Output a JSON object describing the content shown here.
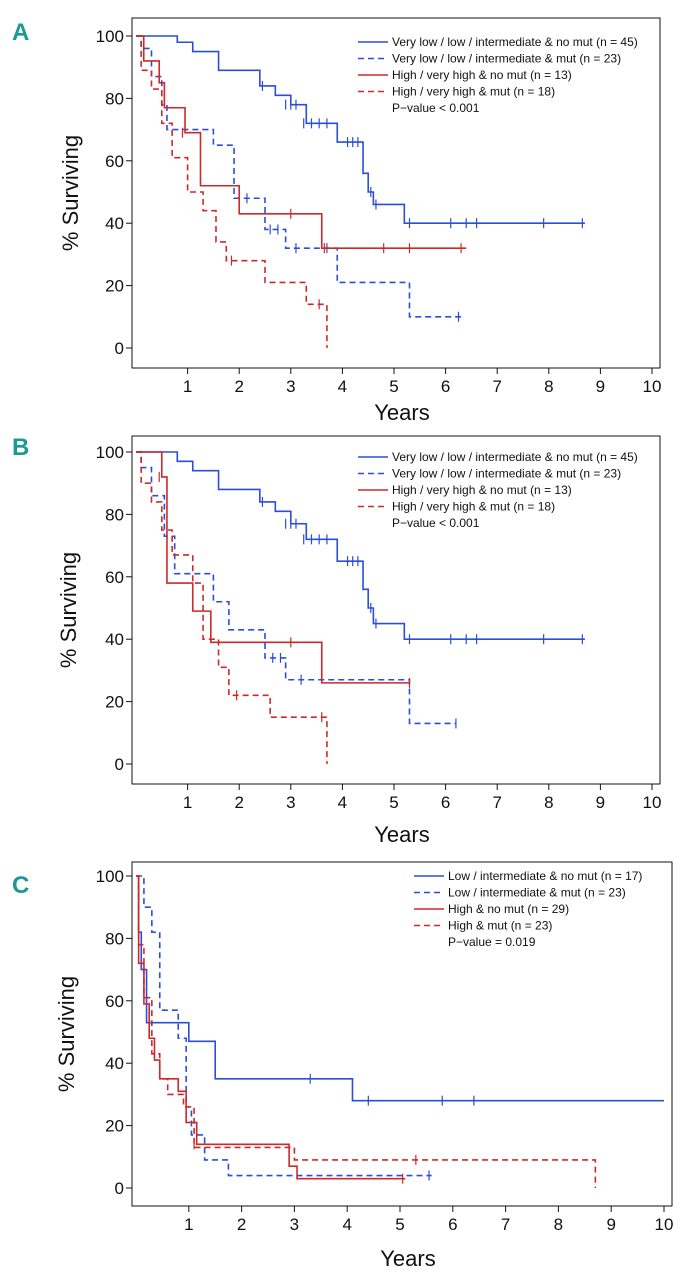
{
  "figure": {
    "colors": {
      "blue": "#2a4ed9",
      "red": "#cc2a2a",
      "panel_letter": "#1a9a97",
      "axis": "#111111"
    }
  },
  "chart_data": [
    {
      "type": "line",
      "panel": "A",
      "xlabel": "Years",
      "ylabel": "% Surviving",
      "xlim": [
        0,
        10
      ],
      "ylim": [
        0,
        100
      ],
      "xticks": [
        1,
        2,
        3,
        4,
        5,
        6,
        7,
        8,
        9,
        10
      ],
      "yticks": [
        0,
        20,
        40,
        60,
        80,
        100
      ],
      "pvalue": "P−value < 0.001",
      "series": [
        {
          "name": "Very low / low / intermediate & no mut (n = 45)",
          "color": "blue",
          "style": "solid",
          "x": [
            0,
            0.8,
            1.1,
            1.6,
            2.4,
            2.7,
            3.0,
            3.3,
            3.9,
            4.4,
            4.5,
            4.6,
            4.7,
            5.2,
            8.7
          ],
          "y": [
            100,
            98,
            95,
            89,
            84,
            81,
            78,
            72,
            66,
            56,
            50,
            46,
            46,
            40,
            40
          ],
          "censors": [
            [
              2.45,
              84
            ],
            [
              2.9,
              78
            ],
            [
              3.0,
              78
            ],
            [
              3.1,
              78
            ],
            [
              3.25,
              72
            ],
            [
              3.4,
              72
            ],
            [
              3.55,
              72
            ],
            [
              3.7,
              72
            ],
            [
              4.1,
              66
            ],
            [
              4.2,
              66
            ],
            [
              4.3,
              66
            ],
            [
              4.55,
              50
            ],
            [
              4.65,
              46
            ],
            [
              5.3,
              40
            ],
            [
              6.1,
              40
            ],
            [
              6.4,
              40
            ],
            [
              6.6,
              40
            ],
            [
              7.9,
              40
            ],
            [
              8.65,
              40
            ]
          ]
        },
        {
          "name": "Very low / low / intermediate & mut (n = 23)",
          "color": "blue",
          "style": "dashed",
          "x": [
            0,
            0.1,
            0.3,
            0.5,
            0.6,
            1.5,
            1.9,
            2.5,
            2.9,
            3.9,
            5.3,
            6.3
          ],
          "y": [
            100,
            96,
            87,
            78,
            70,
            65,
            48,
            38,
            32,
            21,
            10,
            10
          ],
          "censors": [
            [
              2.15,
              48
            ],
            [
              2.6,
              38
            ],
            [
              2.75,
              38
            ],
            [
              3.1,
              32
            ],
            [
              3.7,
              32
            ],
            [
              6.25,
              10
            ]
          ]
        },
        {
          "name": "High / very high & no mut (n = 13)",
          "color": "red",
          "style": "solid",
          "x": [
            0,
            0.15,
            0.45,
            0.55,
            0.95,
            1.25,
            1.75,
            2.0,
            3.6,
            6.4
          ],
          "y": [
            100,
            92,
            85,
            77,
            69,
            52,
            52,
            43,
            32,
            32
          ],
          "censors": [
            [
              0.9,
              69
            ],
            [
              3.0,
              43
            ],
            [
              3.65,
              32
            ],
            [
              4.8,
              32
            ],
            [
              5.3,
              32
            ],
            [
              6.3,
              32
            ]
          ]
        },
        {
          "name": "High / very high & mut (n = 18)",
          "color": "red",
          "style": "dashed",
          "x": [
            0,
            0.1,
            0.3,
            0.5,
            0.7,
            1.0,
            1.3,
            1.55,
            1.75,
            2.5,
            3.3,
            3.7,
            3.7
          ],
          "y": [
            100,
            89,
            83,
            72,
            61,
            50,
            44,
            34,
            28,
            21,
            14,
            7,
            0
          ],
          "censors": [
            [
              1.85,
              28
            ],
            [
              3.55,
              14
            ]
          ]
        }
      ]
    },
    {
      "type": "line",
      "panel": "B",
      "xlabel": "Years",
      "ylabel": "% Surviving",
      "xlim": [
        0,
        10
      ],
      "ylim": [
        0,
        100
      ],
      "xticks": [
        1,
        2,
        3,
        4,
        5,
        6,
        7,
        8,
        9,
        10
      ],
      "yticks": [
        0,
        20,
        40,
        60,
        80,
        100
      ],
      "pvalue": "P−value < 0.001",
      "series": [
        {
          "name": "Very low / low / intermediate & no mut (n = 45)",
          "color": "blue",
          "style": "solid",
          "x": [
            0,
            0.8,
            1.1,
            1.6,
            2.4,
            2.7,
            3.0,
            3.3,
            3.9,
            4.4,
            4.5,
            4.6,
            4.7,
            5.2,
            8.7
          ],
          "y": [
            100,
            97,
            94,
            88,
            84,
            81,
            77,
            72,
            65,
            56,
            50,
            45,
            45,
            40,
            40
          ],
          "censors": [
            [
              2.45,
              84
            ],
            [
              2.9,
              77
            ],
            [
              3.0,
              77
            ],
            [
              3.1,
              77
            ],
            [
              3.25,
              72
            ],
            [
              3.4,
              72
            ],
            [
              3.55,
              72
            ],
            [
              3.7,
              72
            ],
            [
              4.1,
              65
            ],
            [
              4.2,
              65
            ],
            [
              4.3,
              65
            ],
            [
              4.55,
              50
            ],
            [
              4.65,
              45
            ],
            [
              5.3,
              40
            ],
            [
              6.1,
              40
            ],
            [
              6.4,
              40
            ],
            [
              6.6,
              40
            ],
            [
              7.9,
              40
            ],
            [
              8.65,
              40
            ]
          ]
        },
        {
          "name": "Very low / low / intermediate & mut (n = 23)",
          "color": "blue",
          "style": "dashed",
          "x": [
            0,
            0.1,
            0.3,
            0.55,
            0.75,
            1.5,
            1.8,
            2.5,
            2.9,
            3.6,
            5.3,
            6.2
          ],
          "y": [
            100,
            95,
            86,
            73,
            61,
            52,
            43,
            34,
            27,
            27,
            13,
            13
          ],
          "censors": [
            [
              2.65,
              34
            ],
            [
              2.8,
              34
            ],
            [
              3.2,
              27
            ],
            [
              6.2,
              13
            ]
          ]
        },
        {
          "name": "High / very high & no mut (n = 13)",
          "color": "red",
          "style": "solid",
          "x": [
            0,
            0.5,
            0.6,
            1.1,
            1.45,
            3.6,
            5.3
          ],
          "y": [
            100,
            92,
            58,
            49,
            39,
            26,
            26
          ],
          "censors": [
            [
              0.45,
              92
            ],
            [
              3.0,
              39
            ],
            [
              5.3,
              26
            ]
          ]
        },
        {
          "name": "High / very high & mut (n = 18)",
          "color": "red",
          "style": "dashed",
          "x": [
            0,
            0.1,
            0.3,
            0.5,
            0.7,
            1.1,
            1.3,
            1.6,
            1.8,
            2.6,
            3.7,
            3.7
          ],
          "y": [
            100,
            90,
            84,
            75,
            67,
            58,
            40,
            31,
            22,
            15,
            15,
            0
          ],
          "censors": [
            [
              1.95,
              22
            ],
            [
              3.6,
              15
            ]
          ]
        }
      ]
    },
    {
      "type": "line",
      "panel": "C",
      "xlabel": "Years",
      "ylabel": "% Surviving",
      "xlim": [
        0,
        10
      ],
      "ylim": [
        0,
        100
      ],
      "xticks": [
        1,
        2,
        3,
        4,
        5,
        6,
        7,
        8,
        9,
        10
      ],
      "yticks": [
        0,
        20,
        40,
        60,
        80,
        100
      ],
      "pvalue": "P−value = 0.019",
      "series": [
        {
          "name": "Low / intermediate & no mut (n = 17)",
          "color": "blue",
          "style": "solid",
          "x": [
            0,
            0.05,
            0.1,
            0.2,
            0.7,
            1.0,
            1.5,
            4.1,
            10
          ],
          "y": [
            100,
            82,
            70,
            53,
            53,
            47,
            35,
            28,
            28
          ],
          "censors": [
            [
              3.3,
              35
            ],
            [
              4.4,
              28
            ],
            [
              5.8,
              28
            ],
            [
              6.4,
              28
            ]
          ]
        },
        {
          "name": "Low / intermediate & mut (n = 23)",
          "color": "blue",
          "style": "dashed",
          "x": [
            0,
            0.15,
            0.3,
            0.45,
            0.8,
            0.95,
            1.05,
            1.3,
            1.75,
            5.6
          ],
          "y": [
            100,
            90,
            82,
            57,
            48,
            26,
            17,
            9,
            4,
            4
          ],
          "censors": [
            [
              5.55,
              4
            ]
          ]
        },
        {
          "name": "High & no mut (n = 29)",
          "color": "red",
          "style": "solid",
          "x": [
            0,
            0.05,
            0.15,
            0.25,
            0.35,
            0.45,
            0.8,
            0.95,
            1.15,
            2.4,
            2.9,
            3.05,
            5.1
          ],
          "y": [
            100,
            72,
            59,
            48,
            41,
            35,
            31,
            21,
            14,
            14,
            7,
            3,
            3
          ],
          "censors": [
            [
              1.1,
              14
            ],
            [
              5.05,
              3
            ]
          ]
        },
        {
          "name": "High & mut (n = 23)",
          "color": "red",
          "style": "dashed",
          "x": [
            0,
            0.05,
            0.15,
            0.3,
            0.45,
            0.6,
            0.9,
            1.1,
            2.0,
            3.0,
            8.7,
            8.7
          ],
          "y": [
            100,
            78,
            61,
            43,
            35,
            30,
            26,
            13,
            13,
            9,
            9,
            0
          ],
          "censors": [
            [
              5.3,
              9
            ]
          ]
        }
      ]
    }
  ]
}
